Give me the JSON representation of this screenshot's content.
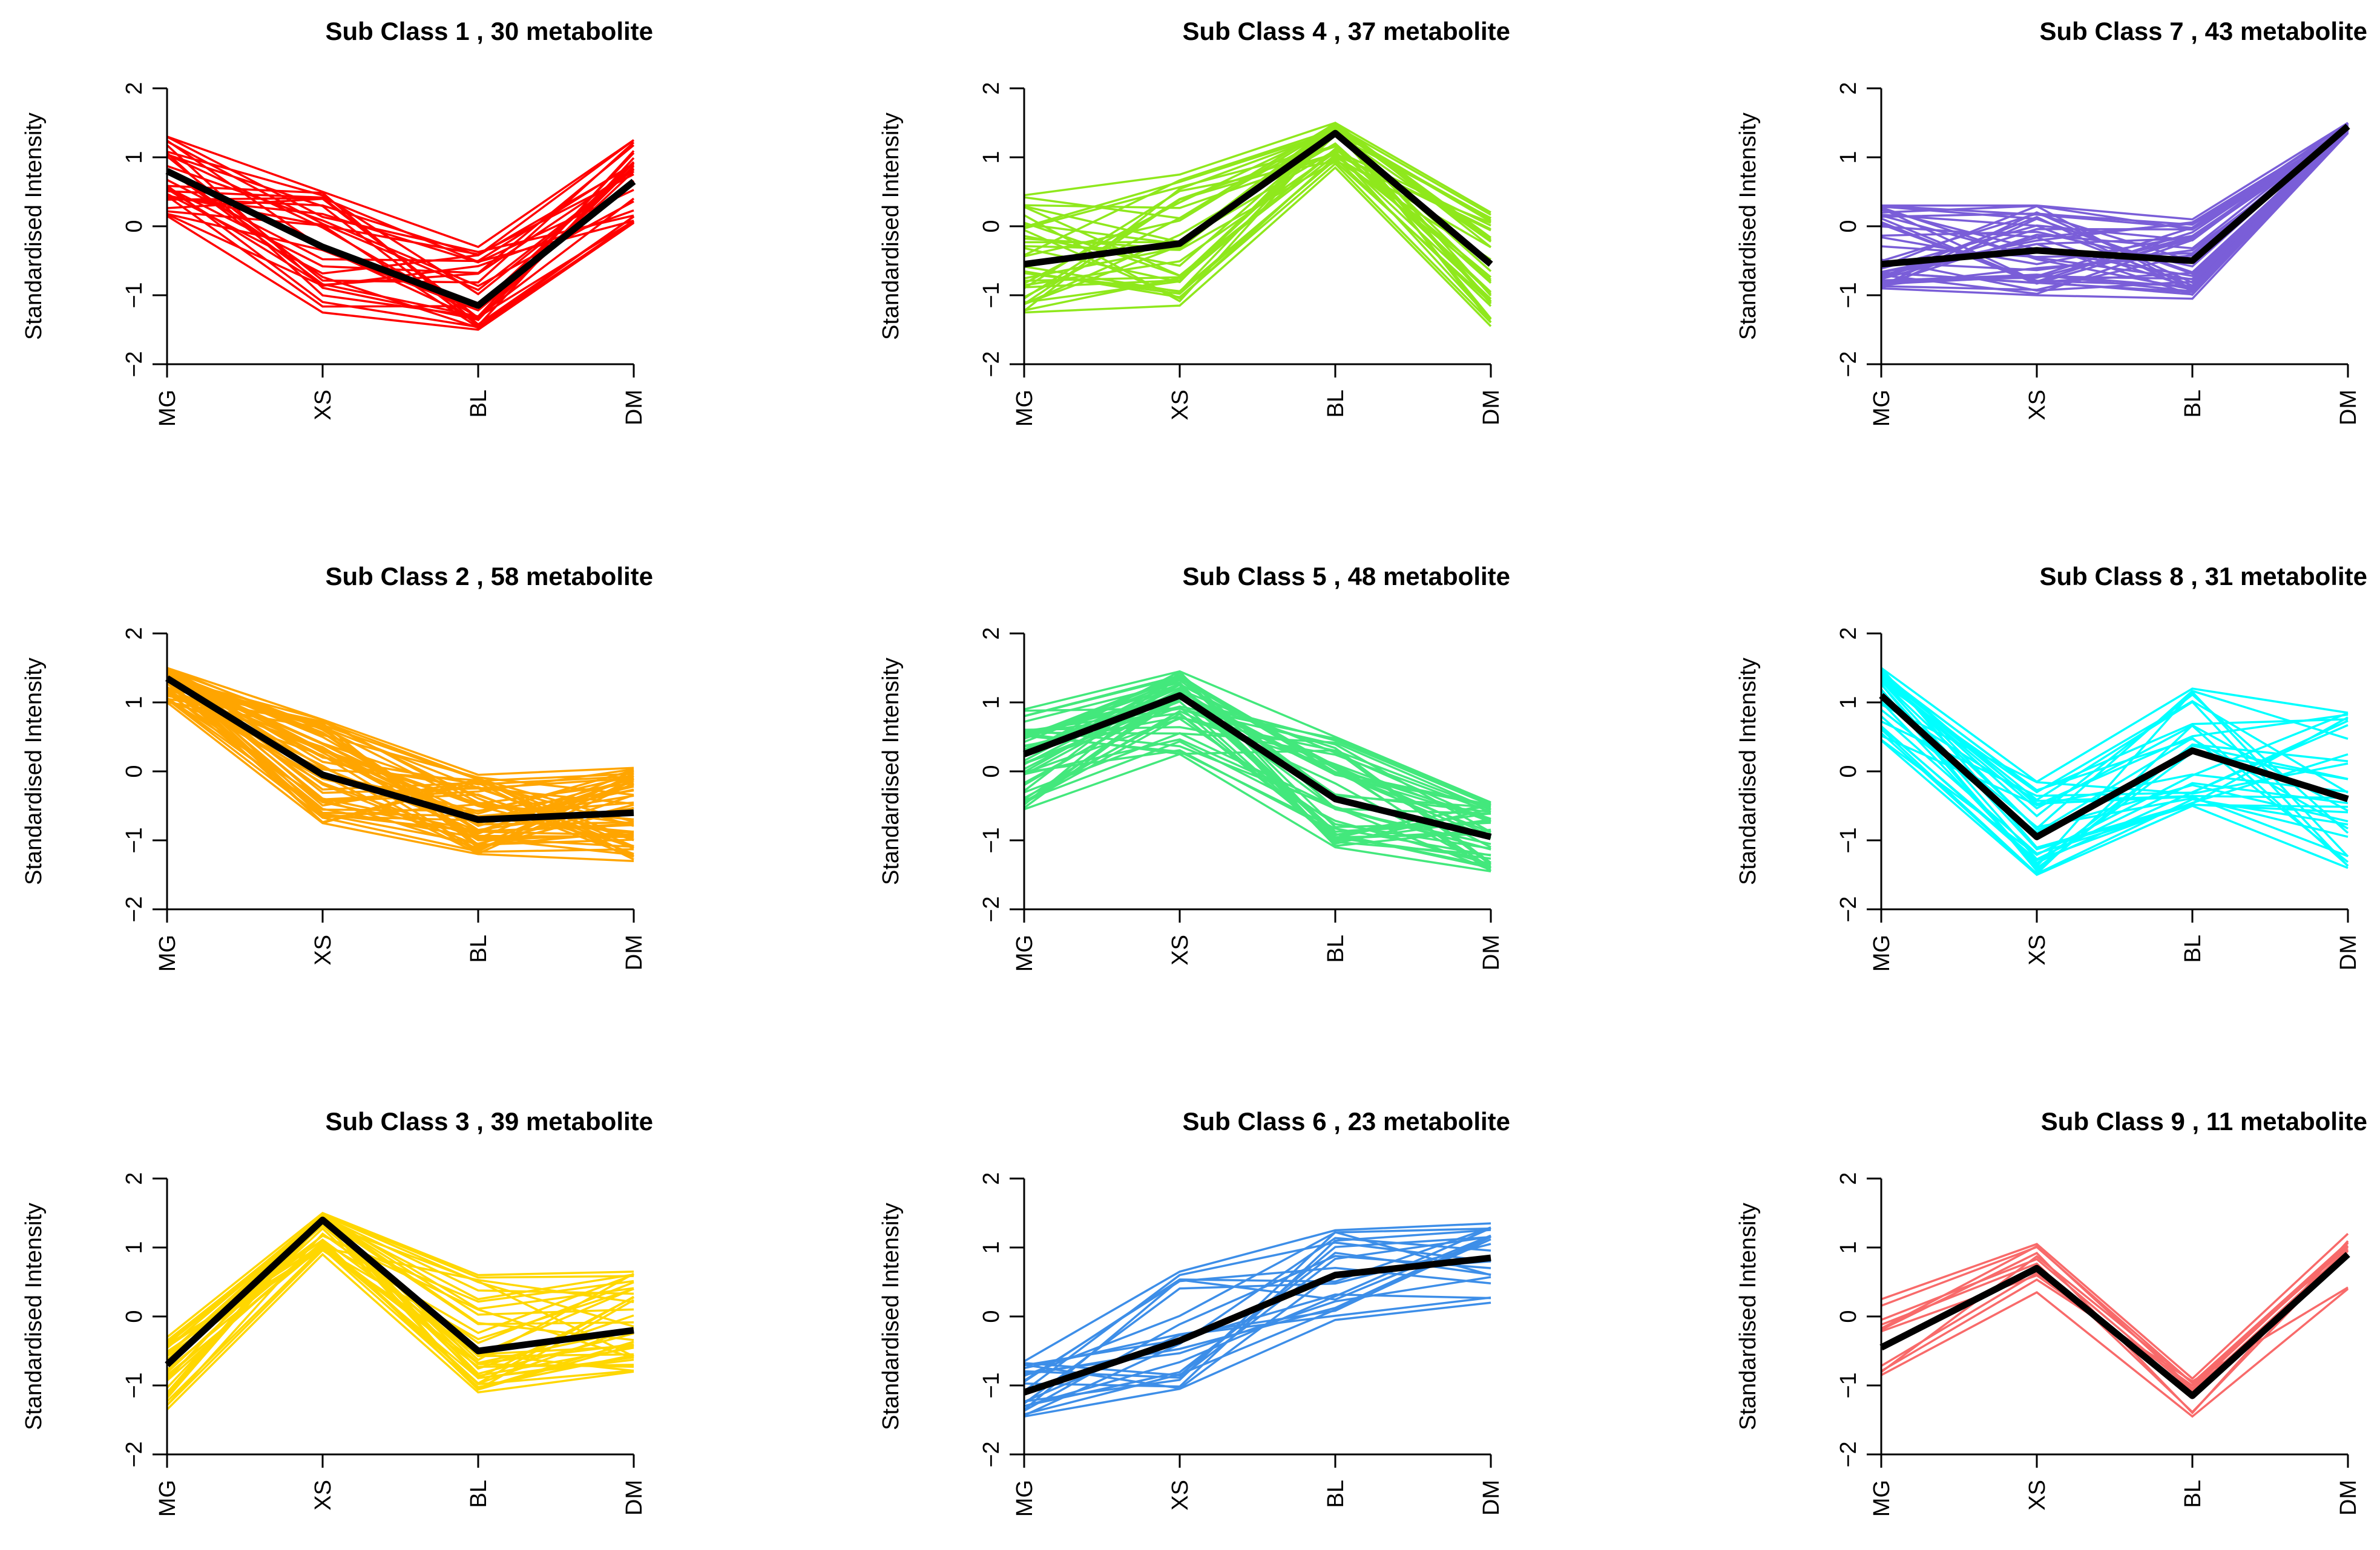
{
  "chart_data": {
    "type": "line",
    "layout": "3x3 grid, column-major order",
    "ylabel": "Standardised Intensity",
    "categories": [
      "MG",
      "XS",
      "BL",
      "DM"
    ],
    "ylim": [
      -2,
      2
    ],
    "yticks": [
      -2,
      -1,
      0,
      1,
      2
    ],
    "mean_line_color": "#000000",
    "panels": [
      {
        "title": "Sub Class  1  , 30 metabolite",
        "subclass": 1,
        "count": 30,
        "color": "#ff0000",
        "mean": [
          0.8,
          -0.3,
          -1.15,
          0.65
        ],
        "min": [
          0.15,
          -1.25,
          -1.5,
          0.05
        ],
        "max": [
          1.3,
          0.5,
          -0.3,
          1.25
        ]
      },
      {
        "title": "Sub Class  2  , 58 metabolite",
        "subclass": 2,
        "count": 58,
        "color": "#ffa500",
        "mean": [
          1.35,
          -0.05,
          -0.7,
          -0.6
        ],
        "min": [
          1.0,
          -0.75,
          -1.2,
          -1.3
        ],
        "max": [
          1.5,
          0.75,
          -0.05,
          0.05
        ]
      },
      {
        "title": "Sub Class  3  , 39 metabolite",
        "subclass": 3,
        "count": 39,
        "color": "#ffd700",
        "mean": [
          -0.7,
          1.4,
          -0.5,
          -0.2
        ],
        "min": [
          -1.35,
          0.9,
          -1.1,
          -0.8
        ],
        "max": [
          -0.3,
          1.5,
          0.6,
          0.65
        ]
      },
      {
        "title": "Sub Class  4  , 37 metabolite",
        "subclass": 4,
        "count": 37,
        "color": "#8fe81c",
        "mean": [
          -0.55,
          -0.25,
          1.35,
          -0.55
        ],
        "min": [
          -1.25,
          -1.15,
          0.85,
          -1.45
        ],
        "max": [
          0.45,
          0.75,
          1.5,
          0.2
        ]
      },
      {
        "title": "Sub Class  5  , 48 metabolite",
        "subclass": 5,
        "count": 48,
        "color": "#43e87c",
        "mean": [
          0.25,
          1.1,
          -0.4,
          -0.95
        ],
        "min": [
          -0.55,
          0.25,
          -1.1,
          -1.45
        ],
        "max": [
          0.9,
          1.45,
          0.5,
          -0.45
        ]
      },
      {
        "title": "Sub Class  6  , 23 metabolite",
        "subclass": 6,
        "count": 23,
        "color": "#3d8ee8",
        "mean": [
          -1.1,
          -0.35,
          0.6,
          0.85
        ],
        "min": [
          -1.45,
          -1.05,
          -0.05,
          0.2
        ],
        "max": [
          -0.65,
          0.65,
          1.25,
          1.35
        ]
      },
      {
        "title": "Sub Class  7  , 43 metabolite",
        "subclass": 7,
        "count": 43,
        "color": "#7a5ed8",
        "mean": [
          -0.55,
          -0.35,
          -0.5,
          1.45
        ],
        "min": [
          -0.9,
          -1.0,
          -1.05,
          1.35
        ],
        "max": [
          0.3,
          0.3,
          0.1,
          1.5
        ]
      },
      {
        "title": "Sub Class  8  , 31 metabolite",
        "subclass": 8,
        "count": 31,
        "color": "#00ffff",
        "mean": [
          1.1,
          -0.95,
          0.3,
          -0.4
        ],
        "min": [
          0.45,
          -1.5,
          -0.5,
          -1.4
        ],
        "max": [
          1.5,
          -0.15,
          1.2,
          0.85
        ]
      },
      {
        "title": "Sub Class  9  , 11 metabolite",
        "subclass": 9,
        "count": 11,
        "color": "#f86a6a",
        "mean": [
          -0.45,
          0.7,
          -1.15,
          0.9
        ],
        "min": [
          -0.85,
          0.35,
          -1.45,
          0.4
        ],
        "max": [
          0.25,
          1.05,
          -0.9,
          1.2
        ]
      }
    ]
  }
}
